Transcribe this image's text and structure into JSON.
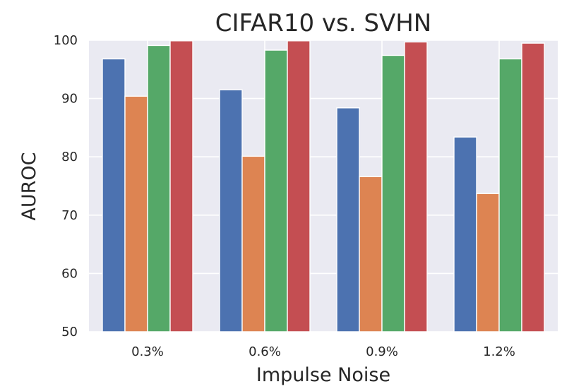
{
  "chart_data": {
    "type": "bar",
    "title": "CIFAR10 vs. SVHN",
    "xlabel": "Impulse Noise",
    "ylabel": "AUROC",
    "categories": [
      "0.3%",
      "0.6%",
      "0.9%",
      "1.2%"
    ],
    "ylim": [
      50,
      100
    ],
    "yticks": [
      50,
      60,
      70,
      80,
      90,
      100
    ],
    "grid": true,
    "legend": "none",
    "series": [
      {
        "name": "series-1",
        "color": "#4c72b0",
        "values": [
          96.8,
          91.5,
          88.4,
          83.4
        ]
      },
      {
        "name": "series-2",
        "color": "#dd8452",
        "values": [
          90.4,
          80.1,
          76.6,
          73.7
        ]
      },
      {
        "name": "series-3",
        "color": "#55a868",
        "values": [
          99.1,
          98.3,
          97.4,
          96.8
        ]
      },
      {
        "name": "series-4",
        "color": "#c44e52",
        "values": [
          99.9,
          99.9,
          99.7,
          99.5
        ]
      }
    ]
  },
  "colors": {
    "plot_background": "#eaeaf2",
    "grid": "#ffffff",
    "text": "#262626"
  }
}
